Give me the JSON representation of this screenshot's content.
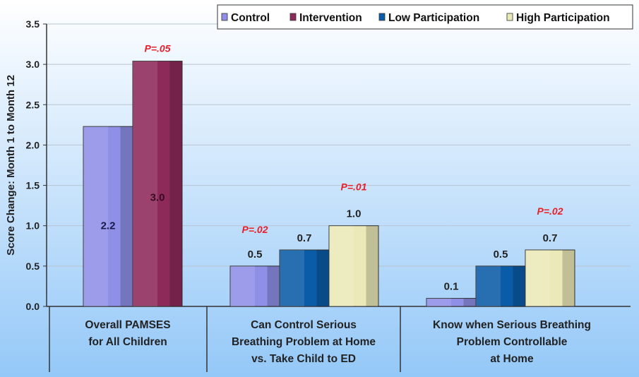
{
  "chart_data": {
    "type": "bar",
    "title": "",
    "ylabel": "Score Change: Month 1 to Month 12",
    "xlabel": "",
    "ylim": [
      0,
      3.5
    ],
    "yticks": [
      "0.0",
      "0.5",
      "1.0",
      "1.5",
      "2.0",
      "2.5",
      "3.0",
      "3.5"
    ],
    "grid": true,
    "legend_position": "top-right",
    "legend": [
      {
        "name": "Control",
        "color": "#8f8fe8"
      },
      {
        "name": "Intervention",
        "color": "#8e2a5a"
      },
      {
        "name": "Low Participation",
        "color": "#0b5ca8"
      },
      {
        "name": "High Participation",
        "color": "#ebe9b8"
      }
    ],
    "groups": [
      {
        "label": [
          "Overall PAMSES",
          "for All Children"
        ],
        "bars": [
          {
            "series": "Control",
            "value": 2.23,
            "label": "2.2"
          },
          {
            "series": "Intervention",
            "value": 3.04,
            "label": "3.0"
          }
        ],
        "p_value": "P=.05",
        "p_over": "Intervention"
      },
      {
        "label": [
          "Can Control Serious",
          "Breathing Problem at Home",
          "vs. Take Child to ED"
        ],
        "bars": [
          {
            "series": "Control",
            "value": 0.5,
            "label": "0.5"
          },
          {
            "series": "Low Participation",
            "value": 0.7,
            "label": "0.7"
          },
          {
            "series": "High Participation",
            "value": 1.0,
            "label": "1.0"
          }
        ],
        "p_value_control": "P=.02",
        "p_value": "P=.01",
        "p_over": "High Participation"
      },
      {
        "label": [
          "Know when Serious Breathing",
          "Problem Controllable",
          "at Home"
        ],
        "bars": [
          {
            "series": "Control",
            "value": 0.1,
            "label": "0.1"
          },
          {
            "series": "Low Participation",
            "value": 0.5,
            "label": "0.5"
          },
          {
            "series": "High Participation",
            "value": 0.7,
            "label": "0.7"
          }
        ],
        "p_value": "P=.02",
        "p_over": "High Participation"
      }
    ]
  }
}
